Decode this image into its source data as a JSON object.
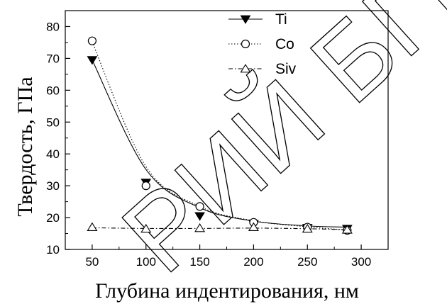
{
  "watermark": "РИЙ БГПУ",
  "chart_data": {
    "type": "scatter",
    "xlabel": "Глубина индентирования, нм",
    "ylabel": "Твердость, ГПа",
    "xlim": [
      25,
      325
    ],
    "ylim": [
      10,
      85
    ],
    "x_ticks": [
      50,
      100,
      150,
      200,
      250,
      300
    ],
    "y_ticks": [
      10,
      20,
      30,
      40,
      50,
      60,
      70,
      80
    ],
    "legend_position": "top-right",
    "series": [
      {
        "name": "Ti",
        "marker": "triangle-down-filled",
        "line": "solid",
        "x": [
          50,
          100,
          150,
          200,
          250,
          287
        ],
        "y": [
          69.5,
          31,
          20.5,
          18,
          16.8,
          16.5
        ],
        "fit_y": [
          69.5,
          35.1,
          23.1,
          18.9,
          17.4,
          17.0
        ]
      },
      {
        "name": "Co",
        "marker": "circle-open",
        "line": "dotted",
        "x": [
          50,
          100,
          150,
          200,
          250,
          287
        ],
        "y": [
          75.5,
          30,
          23.5,
          18.5,
          17,
          16
        ],
        "fit_y": [
          75.2,
          36.0,
          23.5,
          19.0,
          17.1,
          16.1
        ]
      },
      {
        "name": "Siv",
        "marker": "triangle-up-open",
        "line": "dash-dot",
        "x": [
          50,
          100,
          150,
          200,
          250,
          287
        ],
        "y": [
          17,
          16.5,
          16.7,
          17,
          16.5,
          16.2
        ],
        "fit_y": [
          16.8,
          16.6,
          16.6,
          16.7,
          16.5,
          16.2
        ]
      }
    ]
  }
}
